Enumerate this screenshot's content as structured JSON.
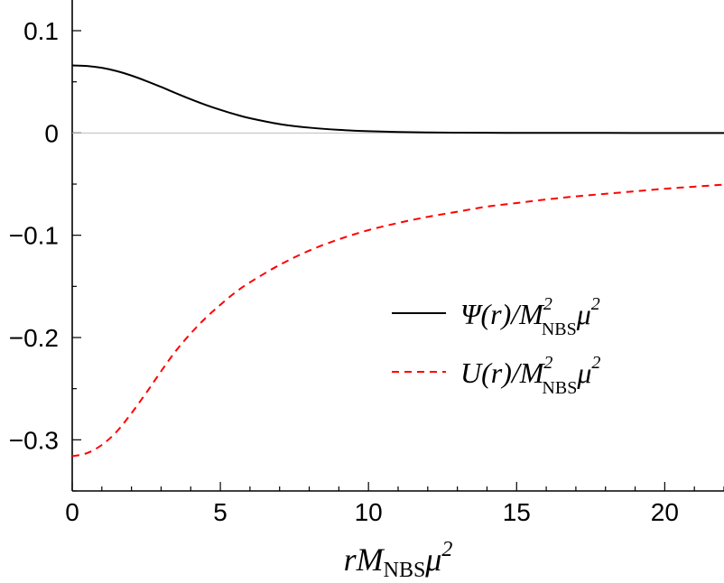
{
  "chart_data": {
    "type": "line",
    "title": "",
    "xlabel": {
      "main": "rM",
      "sub": "NBS",
      "greek": "μ",
      "sup": "2"
    },
    "ylabel": "",
    "xlim": [
      0,
      22
    ],
    "ylim": [
      -0.35,
      0.13
    ],
    "x_ticks": [
      0,
      5,
      10,
      15,
      20
    ],
    "x_tick_labels": [
      "0",
      "5",
      "10",
      "15",
      "20"
    ],
    "y_ticks": [
      0.1,
      0,
      -0.1,
      -0.2,
      -0.3
    ],
    "y_tick_labels": [
      "0.1",
      "0",
      "−0.1",
      "−0.2",
      "−0.3"
    ],
    "grid": false,
    "legend_position": "right-center",
    "series": [
      {
        "name": "Ψ(r)/M²NBSμ²",
        "legend": {
          "head": "Ψ(r)/M",
          "sup": "2",
          "sub": "NBS",
          "tail": "μ",
          "tail_sup": "2"
        },
        "color": "#000000",
        "style": "solid",
        "x": [
          0,
          0.5,
          1,
          1.5,
          2,
          2.5,
          3,
          3.5,
          4,
          4.5,
          5,
          5.5,
          6,
          7,
          8,
          9,
          10,
          11,
          12,
          13,
          14,
          15,
          16,
          18,
          20,
          22
        ],
        "y": [
          0.066,
          0.0655,
          0.0637,
          0.0605,
          0.0561,
          0.0508,
          0.045,
          0.0389,
          0.033,
          0.0275,
          0.0226,
          0.0182,
          0.0144,
          0.0087,
          0.0052,
          0.003,
          0.0017,
          0.0009,
          0.0005,
          0.0003,
          0.00015,
          0.0001,
          5e-05,
          2e-05,
          1e-05,
          0
        ]
      },
      {
        "name": "U(r)/M²NBSμ²",
        "legend": {
          "head": "U(r)/M",
          "sup": "2",
          "sub": "NBS",
          "tail": "μ",
          "tail_sup": "2"
        },
        "color": "#ff0000",
        "style": "dashed",
        "x": [
          0,
          0.5,
          1,
          1.5,
          2,
          2.5,
          3,
          3.5,
          4,
          4.5,
          5,
          5.5,
          6,
          7,
          8,
          9,
          10,
          11,
          12,
          13,
          14,
          15,
          16,
          17,
          18,
          19,
          20,
          21,
          22
        ],
        "y": [
          -0.316,
          -0.313,
          -0.305,
          -0.292,
          -0.274,
          -0.254,
          -0.233,
          -0.213,
          -0.196,
          -0.181,
          -0.168,
          -0.156,
          -0.146,
          -0.129,
          -0.115,
          -0.104,
          -0.095,
          -0.088,
          -0.082,
          -0.077,
          -0.072,
          -0.0685,
          -0.065,
          -0.062,
          -0.0595,
          -0.057,
          -0.0545,
          -0.0525,
          -0.0505
        ]
      }
    ]
  }
}
